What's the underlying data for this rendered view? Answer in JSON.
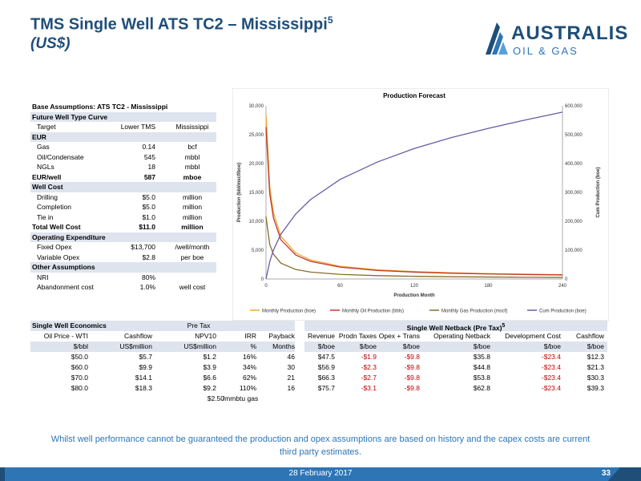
{
  "header": {
    "title": "TMS Single Well ATS TC2 – Mississippi",
    "title_sup": "5",
    "subtitle": "(US$)",
    "logo_main": "AUSTRALIS",
    "logo_sub": "OIL & GAS"
  },
  "base": {
    "title": "Base Assumptions: ATS TC2 - Mississippi",
    "future_curve": "Future Well Type Curve",
    "target_label": "Target",
    "target_val": "Lower TMS",
    "target_unit": "Mississippi",
    "eur": "EUR",
    "gas_label": "Gas",
    "gas_val": "0.14",
    "gas_unit": "bcf",
    "oil_label": "Oil/Condensate",
    "oil_val": "545",
    "oil_unit": "mbbl",
    "ngl_label": "NGLs",
    "ngl_val": "18",
    "ngl_unit": "mbbl",
    "eurwell_label": "EUR/well",
    "eurwell_val": "587",
    "eurwell_unit": "mboe",
    "wellcost": "Well Cost",
    "drill_label": "Drilling",
    "drill_val": "$5.0",
    "drill_unit": "million",
    "comp_label": "Completion",
    "comp_val": "$5.0",
    "comp_unit": "million",
    "tie_label": "Tie in",
    "tie_val": "$1.0",
    "tie_unit": "million",
    "total_label": "Total Well Cost",
    "total_val": "$11.0",
    "total_unit": "million",
    "opex": "Operating Expenditure",
    "fixed_label": "Fixed Opex",
    "fixed_val": "$13,700",
    "fixed_unit": "/well/month",
    "var_label": "Variable Opex",
    "var_val": "$2.8",
    "var_unit": "per boe",
    "other": "Other Assumptions",
    "nri_label": "NRI",
    "nri_val": "80%",
    "aband_label": "Abandonment cost",
    "aband_val": "1.0%",
    "aband_unit": "well cost"
  },
  "econ": {
    "title": "Single Well Economics",
    "pretax": "Pre Tax",
    "h1": [
      "Oil Price - WTI",
      "Cashflow",
      "NPV10",
      "IRR",
      "Payback"
    ],
    "h2": [
      "$/bbl",
      "US$million",
      "US$million",
      "%",
      "Months"
    ],
    "rows": [
      [
        "$50.0",
        "$5.7",
        "$1.2",
        "16%",
        "46"
      ],
      [
        "$60.0",
        "$9.9",
        "$3.9",
        "34%",
        "30"
      ],
      [
        "$70.0",
        "$14.1",
        "$6.6",
        "62%",
        "21"
      ],
      [
        "$80.0",
        "$18.3",
        "$9.2",
        "110%",
        "16"
      ]
    ],
    "gas_price": "$2.50",
    "gas_unit": "/mmbtu gas"
  },
  "netback": {
    "title": "Single Well Netback (Pre Tax)",
    "title_sup": "5",
    "h1": [
      "Revenue",
      "Prodn Taxes",
      "Opex + Trans",
      "Operating Netback",
      "Development Cost",
      "Cashflow"
    ],
    "h2": [
      "$/boe",
      "$/boe",
      "$/boe",
      "$/boe",
      "$/boe",
      "$/boe"
    ],
    "rows": [
      [
        "$47.5",
        "-$1.9",
        "-$9.8",
        "$35.8",
        "-$23.4",
        "$12.3"
      ],
      [
        "$56.9",
        "-$2.3",
        "-$9.8",
        "$44.8",
        "-$23.4",
        "$21.3"
      ],
      [
        "$66.3",
        "-$2.7",
        "-$9.8",
        "$53.8",
        "-$23.4",
        "$30.3"
      ],
      [
        "$75.7",
        "-$3.1",
        "-$9.8",
        "$62.8",
        "-$23.4",
        "$39.3"
      ]
    ]
  },
  "chart_data": {
    "type": "line",
    "title": "Production Forecast",
    "xlabel": "Production Month",
    "ylabel": "Production (bbl/mscf/boe)",
    "y2label": "Cum Production (boe)",
    "xlim": [
      0,
      240
    ],
    "ylim": [
      0,
      30000
    ],
    "y2lim": [
      0,
      600000
    ],
    "x_ticks": [
      "0",
      "60",
      "120",
      "180",
      "240"
    ],
    "y_ticks": [
      "0",
      "5,000",
      "10,000",
      "15,000",
      "20,000",
      "25,000",
      "30,000"
    ],
    "y2_ticks": [
      "0",
      "100,000",
      "200,000",
      "300,000",
      "400,000",
      "500,000",
      "600,000"
    ],
    "x": [
      0,
      3,
      6,
      12,
      24,
      36,
      60,
      90,
      120,
      150,
      180,
      210,
      240
    ],
    "series": [
      {
        "name": "Monthly Production (boe)",
        "axis": "left",
        "color": "#f0a830",
        "values": [
          28500,
          16000,
          11500,
          7400,
          4500,
          3300,
          2200,
          1600,
          1280,
          1080,
          940,
          830,
          750
        ]
      },
      {
        "name": "Monthly Oil Production (bbls)",
        "axis": "left",
        "color": "#c0392b",
        "values": [
          26300,
          14800,
          10600,
          6800,
          4150,
          3050,
          2050,
          1480,
          1190,
          1000,
          870,
          770,
          700
        ]
      },
      {
        "name": "Monthly Gas Production (mscf)",
        "axis": "left",
        "color": "#8b6d2c",
        "values": [
          10800,
          6000,
          4300,
          2750,
          1650,
          1200,
          800,
          580,
          460,
          390,
          340,
          300,
          270
        ]
      },
      {
        "name": "Cum Production (boe)",
        "axis": "right",
        "color": "#6a5aa6",
        "values": [
          0,
          60000,
          100000,
          155000,
          225000,
          275000,
          345000,
          405000,
          452000,
          490000,
          522000,
          551000,
          578000
        ]
      }
    ],
    "legend": "bottom",
    "grid": false
  },
  "footer": {
    "note": "Whilst well performance cannot be guaranteed the production and opex assumptions are based on history and the capex costs are current third party estimates.",
    "date": "28 February 2017",
    "page": "33"
  }
}
